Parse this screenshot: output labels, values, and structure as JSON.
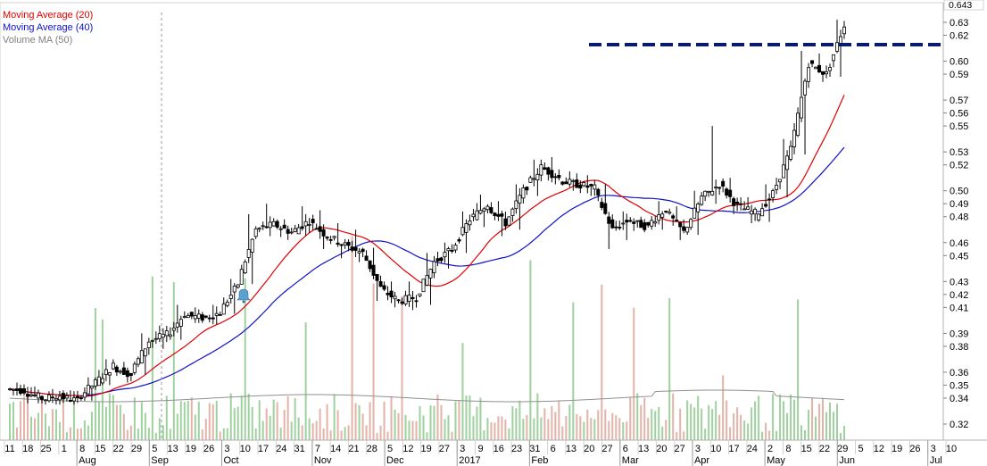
{
  "chart_data": {
    "type": "candlestick",
    "legend": [
      {
        "label": "Moving Average (20)",
        "color": "#e00000"
      },
      {
        "label": "Moving Average (40)",
        "color": "#1010c8"
      },
      {
        "label": "Volume MA (50)",
        "color": "#909090"
      }
    ],
    "last_price_label": "0.643",
    "y_ticks": [
      "0.63",
      "0.62",
      "0.60",
      "0.59",
      "0.57",
      "0.56",
      "0.55",
      "0.53",
      "0.52",
      "0.50",
      "0.49",
      "0.48",
      "0.46",
      "0.45",
      "0.43",
      "0.42",
      "0.41",
      "0.39",
      "0.38",
      "0.36",
      "0.35",
      "0.34",
      "0.32"
    ],
    "y_tick_values": [
      0.63,
      0.62,
      0.6,
      0.59,
      0.57,
      0.56,
      0.55,
      0.53,
      0.52,
      0.5,
      0.49,
      0.48,
      0.46,
      0.45,
      0.43,
      0.42,
      0.41,
      0.39,
      0.38,
      0.36,
      0.35,
      0.34,
      0.32
    ],
    "ylim": [
      0.313,
      0.643
    ],
    "x_day_labels": [
      "11",
      "18",
      "25",
      "1",
      "8",
      "15",
      "22",
      "29",
      "5",
      "13",
      "19",
      "26",
      "3",
      "10",
      "17",
      "24",
      "31",
      "7",
      "14",
      "21",
      "28",
      "5",
      "12",
      "19",
      "27",
      "3",
      "9",
      "16",
      "23",
      "31",
      "6",
      "13",
      "20",
      "27",
      "6",
      "13",
      "20",
      "27",
      "3",
      "10",
      "17",
      "24",
      "2",
      "8",
      "15",
      "22",
      "29",
      "5",
      "12",
      "19",
      "26",
      "3",
      "10"
    ],
    "x_month_labels": [
      "Aug",
      "Sep",
      "Oct",
      "Nov",
      "Dec",
      "2017",
      "Feb",
      "Mar",
      "Apr",
      "May",
      "Jun",
      "Jul"
    ],
    "resistance_level": 0.616,
    "candles_weekly_approx": [
      {
        "w": "Jul 11",
        "o": 0.347,
        "h": 0.352,
        "l": 0.342,
        "c": 0.346
      },
      {
        "w": "Jul 18",
        "o": 0.345,
        "h": 0.349,
        "l": 0.336,
        "c": 0.34
      },
      {
        "w": "Jul 25",
        "o": 0.339,
        "h": 0.347,
        "l": 0.335,
        "c": 0.342
      },
      {
        "w": "Aug 1",
        "o": 0.341,
        "h": 0.346,
        "l": 0.335,
        "c": 0.338
      },
      {
        "w": "Aug 8",
        "o": 0.34,
        "h": 0.356,
        "l": 0.338,
        "c": 0.352
      },
      {
        "w": "Aug 15",
        "o": 0.352,
        "h": 0.37,
        "l": 0.35,
        "c": 0.365
      },
      {
        "w": "Aug 22",
        "o": 0.364,
        "h": 0.368,
        "l": 0.352,
        "c": 0.358
      },
      {
        "w": "Aug 29",
        "o": 0.36,
        "h": 0.39,
        "l": 0.358,
        "c": 0.384
      },
      {
        "w": "Sep 5",
        "o": 0.384,
        "h": 0.396,
        "l": 0.378,
        "c": 0.389
      },
      {
        "w": "Sep 13",
        "o": 0.388,
        "h": 0.412,
        "l": 0.385,
        "c": 0.405
      },
      {
        "w": "Sep 19",
        "o": 0.404,
        "h": 0.41,
        "l": 0.398,
        "c": 0.402
      },
      {
        "w": "Sep 26",
        "o": 0.401,
        "h": 0.412,
        "l": 0.397,
        "c": 0.406
      },
      {
        "w": "Oct 3",
        "o": 0.407,
        "h": 0.432,
        "l": 0.405,
        "c": 0.428
      },
      {
        "w": "Oct 10",
        "o": 0.43,
        "h": 0.482,
        "l": 0.428,
        "c": 0.47
      },
      {
        "w": "Oct 17",
        "o": 0.47,
        "h": 0.49,
        "l": 0.465,
        "c": 0.474
      },
      {
        "w": "Oct 24",
        "o": 0.474,
        "h": 0.478,
        "l": 0.462,
        "c": 0.468
      },
      {
        "w": "Oct 31",
        "o": 0.468,
        "h": 0.488,
        "l": 0.465,
        "c": 0.477
      },
      {
        "w": "Nov 7",
        "o": 0.476,
        "h": 0.485,
        "l": 0.455,
        "c": 0.465
      },
      {
        "w": "Nov 14",
        "o": 0.465,
        "h": 0.475,
        "l": 0.448,
        "c": 0.458
      },
      {
        "w": "Nov 21",
        "o": 0.458,
        "h": 0.47,
        "l": 0.445,
        "c": 0.452
      },
      {
        "w": "Nov 28",
        "o": 0.452,
        "h": 0.456,
        "l": 0.415,
        "c": 0.425
      },
      {
        "w": "Dec 5",
        "o": 0.424,
        "h": 0.43,
        "l": 0.41,
        "c": 0.415
      },
      {
        "w": "Dec 12",
        "o": 0.415,
        "h": 0.43,
        "l": 0.408,
        "c": 0.418
      },
      {
        "w": "Dec 19",
        "o": 0.418,
        "h": 0.452,
        "l": 0.412,
        "c": 0.445
      },
      {
        "w": "Dec 27",
        "o": 0.445,
        "h": 0.46,
        "l": 0.44,
        "c": 0.455
      },
      {
        "w": "Jan 3",
        "o": 0.455,
        "h": 0.484,
        "l": 0.452,
        "c": 0.478
      },
      {
        "w": "Jan 9",
        "o": 0.478,
        "h": 0.497,
        "l": 0.472,
        "c": 0.49
      },
      {
        "w": "Jan 16",
        "o": 0.488,
        "h": 0.492,
        "l": 0.465,
        "c": 0.475
      },
      {
        "w": "Jan 23",
        "o": 0.475,
        "h": 0.505,
        "l": 0.47,
        "c": 0.5
      },
      {
        "w": "Jan 31",
        "o": 0.5,
        "h": 0.524,
        "l": 0.496,
        "c": 0.518
      },
      {
        "w": "Feb 6",
        "o": 0.518,
        "h": 0.526,
        "l": 0.505,
        "c": 0.51
      },
      {
        "w": "Feb 13",
        "o": 0.508,
        "h": 0.515,
        "l": 0.5,
        "c": 0.505
      },
      {
        "w": "Feb 20",
        "o": 0.505,
        "h": 0.512,
        "l": 0.496,
        "c": 0.502
      },
      {
        "w": "Feb 27",
        "o": 0.5,
        "h": 0.505,
        "l": 0.455,
        "c": 0.47
      },
      {
        "w": "Mar 6",
        "o": 0.47,
        "h": 0.484,
        "l": 0.462,
        "c": 0.478
      },
      {
        "w": "Mar 13",
        "o": 0.476,
        "h": 0.48,
        "l": 0.468,
        "c": 0.472
      },
      {
        "w": "Mar 20",
        "o": 0.474,
        "h": 0.492,
        "l": 0.47,
        "c": 0.486
      },
      {
        "w": "Mar 27",
        "o": 0.484,
        "h": 0.488,
        "l": 0.462,
        "c": 0.468
      },
      {
        "w": "Apr 3",
        "o": 0.468,
        "h": 0.5,
        "l": 0.466,
        "c": 0.495
      },
      {
        "w": "Apr 10",
        "o": 0.495,
        "h": 0.55,
        "l": 0.49,
        "c": 0.505
      },
      {
        "w": "Apr 17",
        "o": 0.505,
        "h": 0.51,
        "l": 0.482,
        "c": 0.488
      },
      {
        "w": "Apr 24",
        "o": 0.488,
        "h": 0.495,
        "l": 0.475,
        "c": 0.483
      },
      {
        "w": "May 2",
        "o": 0.48,
        "h": 0.505,
        "l": 0.476,
        "c": 0.498
      },
      {
        "w": "May 8",
        "o": 0.498,
        "h": 0.54,
        "l": 0.495,
        "c": 0.532
      },
      {
        "w": "May 15",
        "o": 0.532,
        "h": 0.608,
        "l": 0.528,
        "c": 0.598
      },
      {
        "w": "May 22",
        "o": 0.598,
        "h": 0.606,
        "l": 0.584,
        "c": 0.59
      },
      {
        "w": "May 29",
        "o": 0.59,
        "h": 0.632,
        "l": 0.588,
        "c": 0.628
      }
    ]
  }
}
